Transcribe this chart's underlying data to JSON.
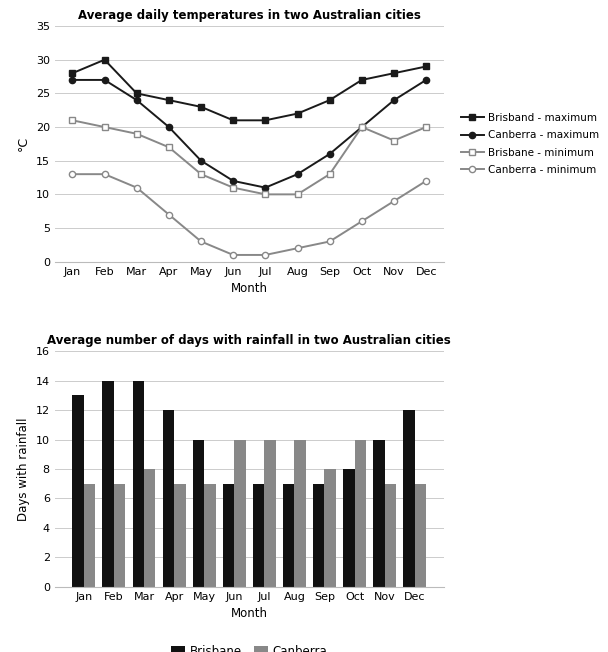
{
  "months": [
    "Jan",
    "Feb",
    "Mar",
    "Apr",
    "May",
    "Jun",
    "Jul",
    "Aug",
    "Sep",
    "Oct",
    "Nov",
    "Dec"
  ],
  "brisbane_max": [
    28,
    30,
    25,
    24,
    23,
    21,
    21,
    22,
    24,
    27,
    28,
    29
  ],
  "canberra_max": [
    27,
    27,
    24,
    20,
    15,
    12,
    11,
    13,
    16,
    20,
    24,
    27
  ],
  "brisbane_min": [
    21,
    20,
    19,
    17,
    13,
    11,
    10,
    10,
    13,
    20,
    18,
    20
  ],
  "canberra_min": [
    13,
    13,
    11,
    7,
    3,
    1,
    1,
    2,
    3,
    6,
    9,
    12
  ],
  "temp_title": "Average daily temperatures in two Australian cities",
  "temp_ylabel": "°C",
  "temp_xlabel": "Month",
  "temp_ylim": [
    0,
    35
  ],
  "temp_yticks": [
    0,
    5,
    10,
    15,
    20,
    25,
    30,
    35
  ],
  "legend_labels": [
    "Brisband - maximum",
    "Canberra - maximum",
    "Brisbane - minimum",
    "Canberra - minimum"
  ],
  "brisbane_rain": [
    13,
    14,
    14,
    12,
    10,
    7,
    7,
    7,
    7,
    8,
    10,
    12
  ],
  "canberra_rain": [
    7,
    7,
    8,
    7,
    7,
    10,
    10,
    10,
    8,
    10,
    7,
    7
  ],
  "rain_title": "Average number of days with rainfall in two Australian cities",
  "rain_ylabel": "Days with rainfall",
  "rain_xlabel": "Month",
  "rain_ylim": [
    0,
    16
  ],
  "rain_yticks": [
    0,
    2,
    4,
    6,
    8,
    10,
    12,
    14,
    16
  ],
  "bar_legend_labels": [
    "Brisbane",
    "Canberra"
  ],
  "brisbane_color": "#111111",
  "canberra_color": "#888888",
  "line_dark": "#1a1a1a",
  "line_grey": "#888888"
}
